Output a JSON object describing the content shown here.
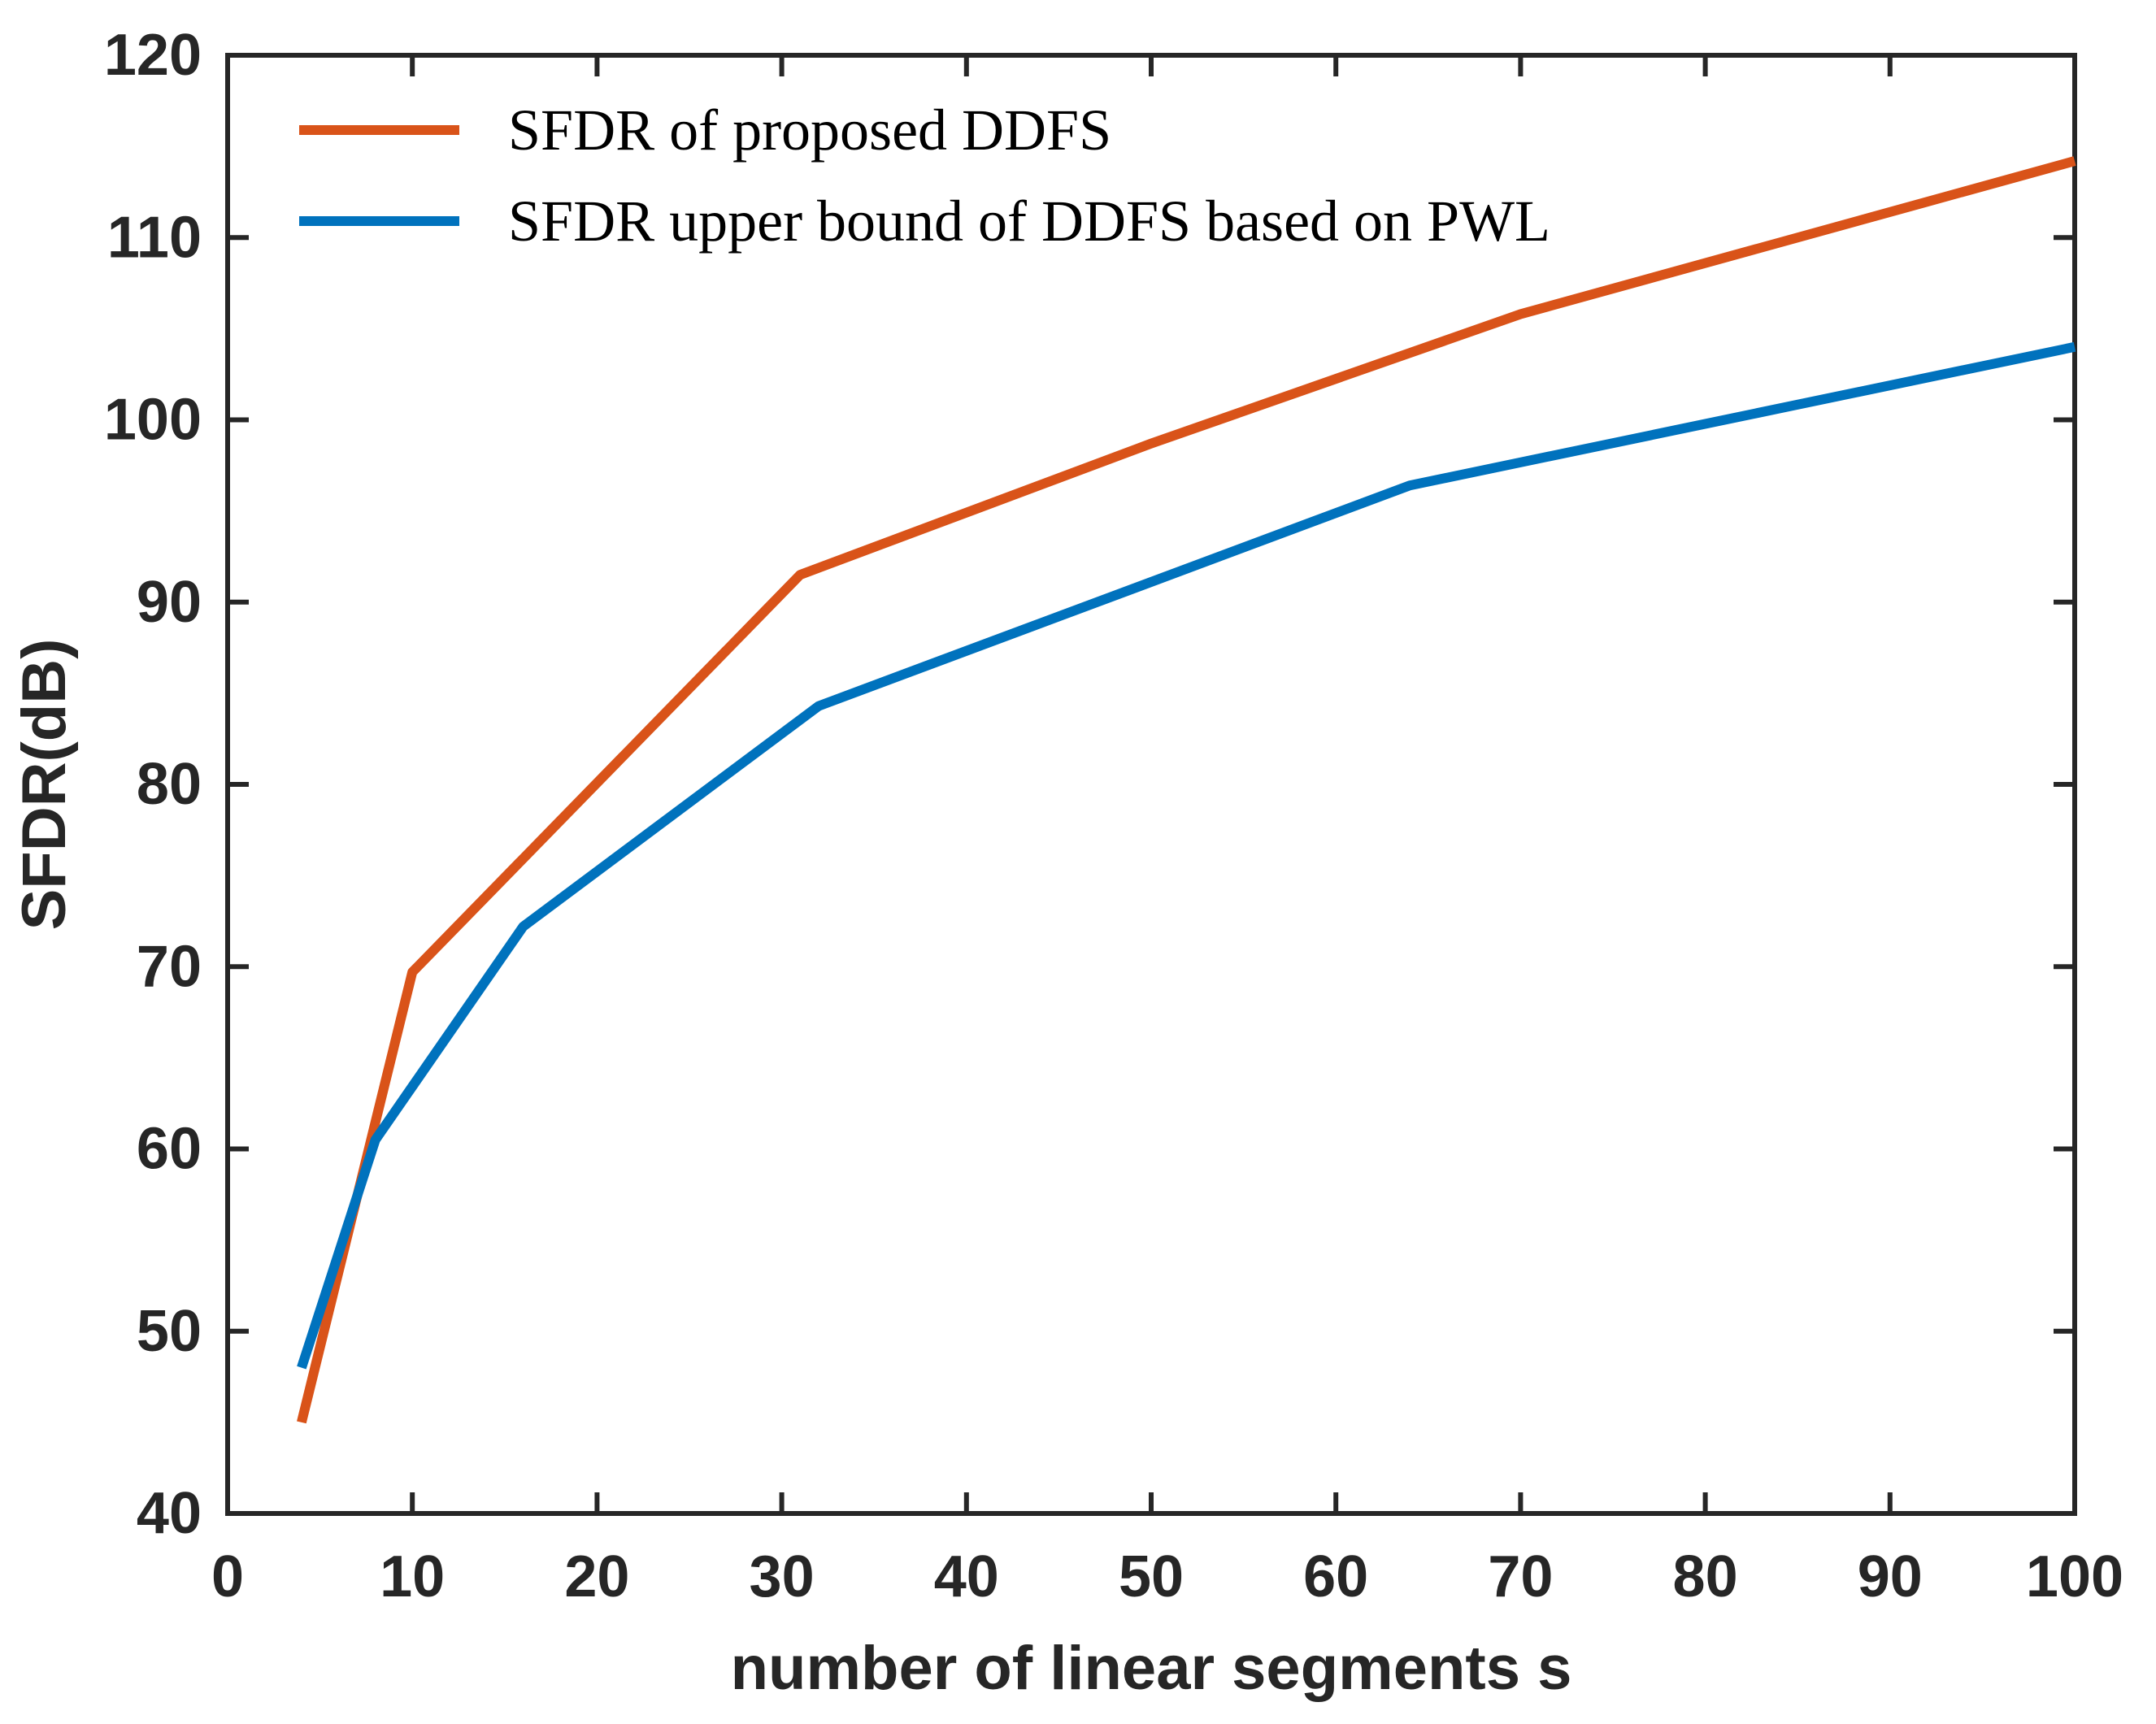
{
  "figure": {
    "background": "#ffffff",
    "axis_color": "#262626",
    "tick_label_color": "#262626",
    "legend_text_color": "#000000"
  },
  "chart_data": {
    "type": "line",
    "title": "",
    "xlabel": "number of linear segments s",
    "ylabel": "SFDR(dB)",
    "xlim": [
      0,
      100
    ],
    "ylim": [
      40,
      120
    ],
    "xticks": [
      0,
      10,
      20,
      30,
      40,
      50,
      60,
      70,
      80,
      90,
      100
    ],
    "yticks": [
      40,
      50,
      60,
      70,
      80,
      90,
      100,
      110,
      120
    ],
    "grid": false,
    "legend_position": "top-left-inside",
    "legend_frame": false,
    "series": [
      {
        "name": "SFDR of proposed DDFS",
        "color": "#D95319",
        "points": [
          [
            4,
            45
          ],
          [
            10,
            69.7
          ],
          [
            31,
            91.5
          ],
          [
            50,
            98.7
          ],
          [
            70,
            105.8
          ],
          [
            100,
            114.2
          ]
        ]
      },
      {
        "name": "SFDR upper bound of DDFS based on PWL",
        "color": "#0072BD",
        "points": [
          [
            4,
            48
          ],
          [
            8,
            60.5
          ],
          [
            16,
            72.2
          ],
          [
            32,
            84.3
          ],
          [
            64,
            96.4
          ],
          [
            100,
            104
          ]
        ]
      }
    ]
  }
}
